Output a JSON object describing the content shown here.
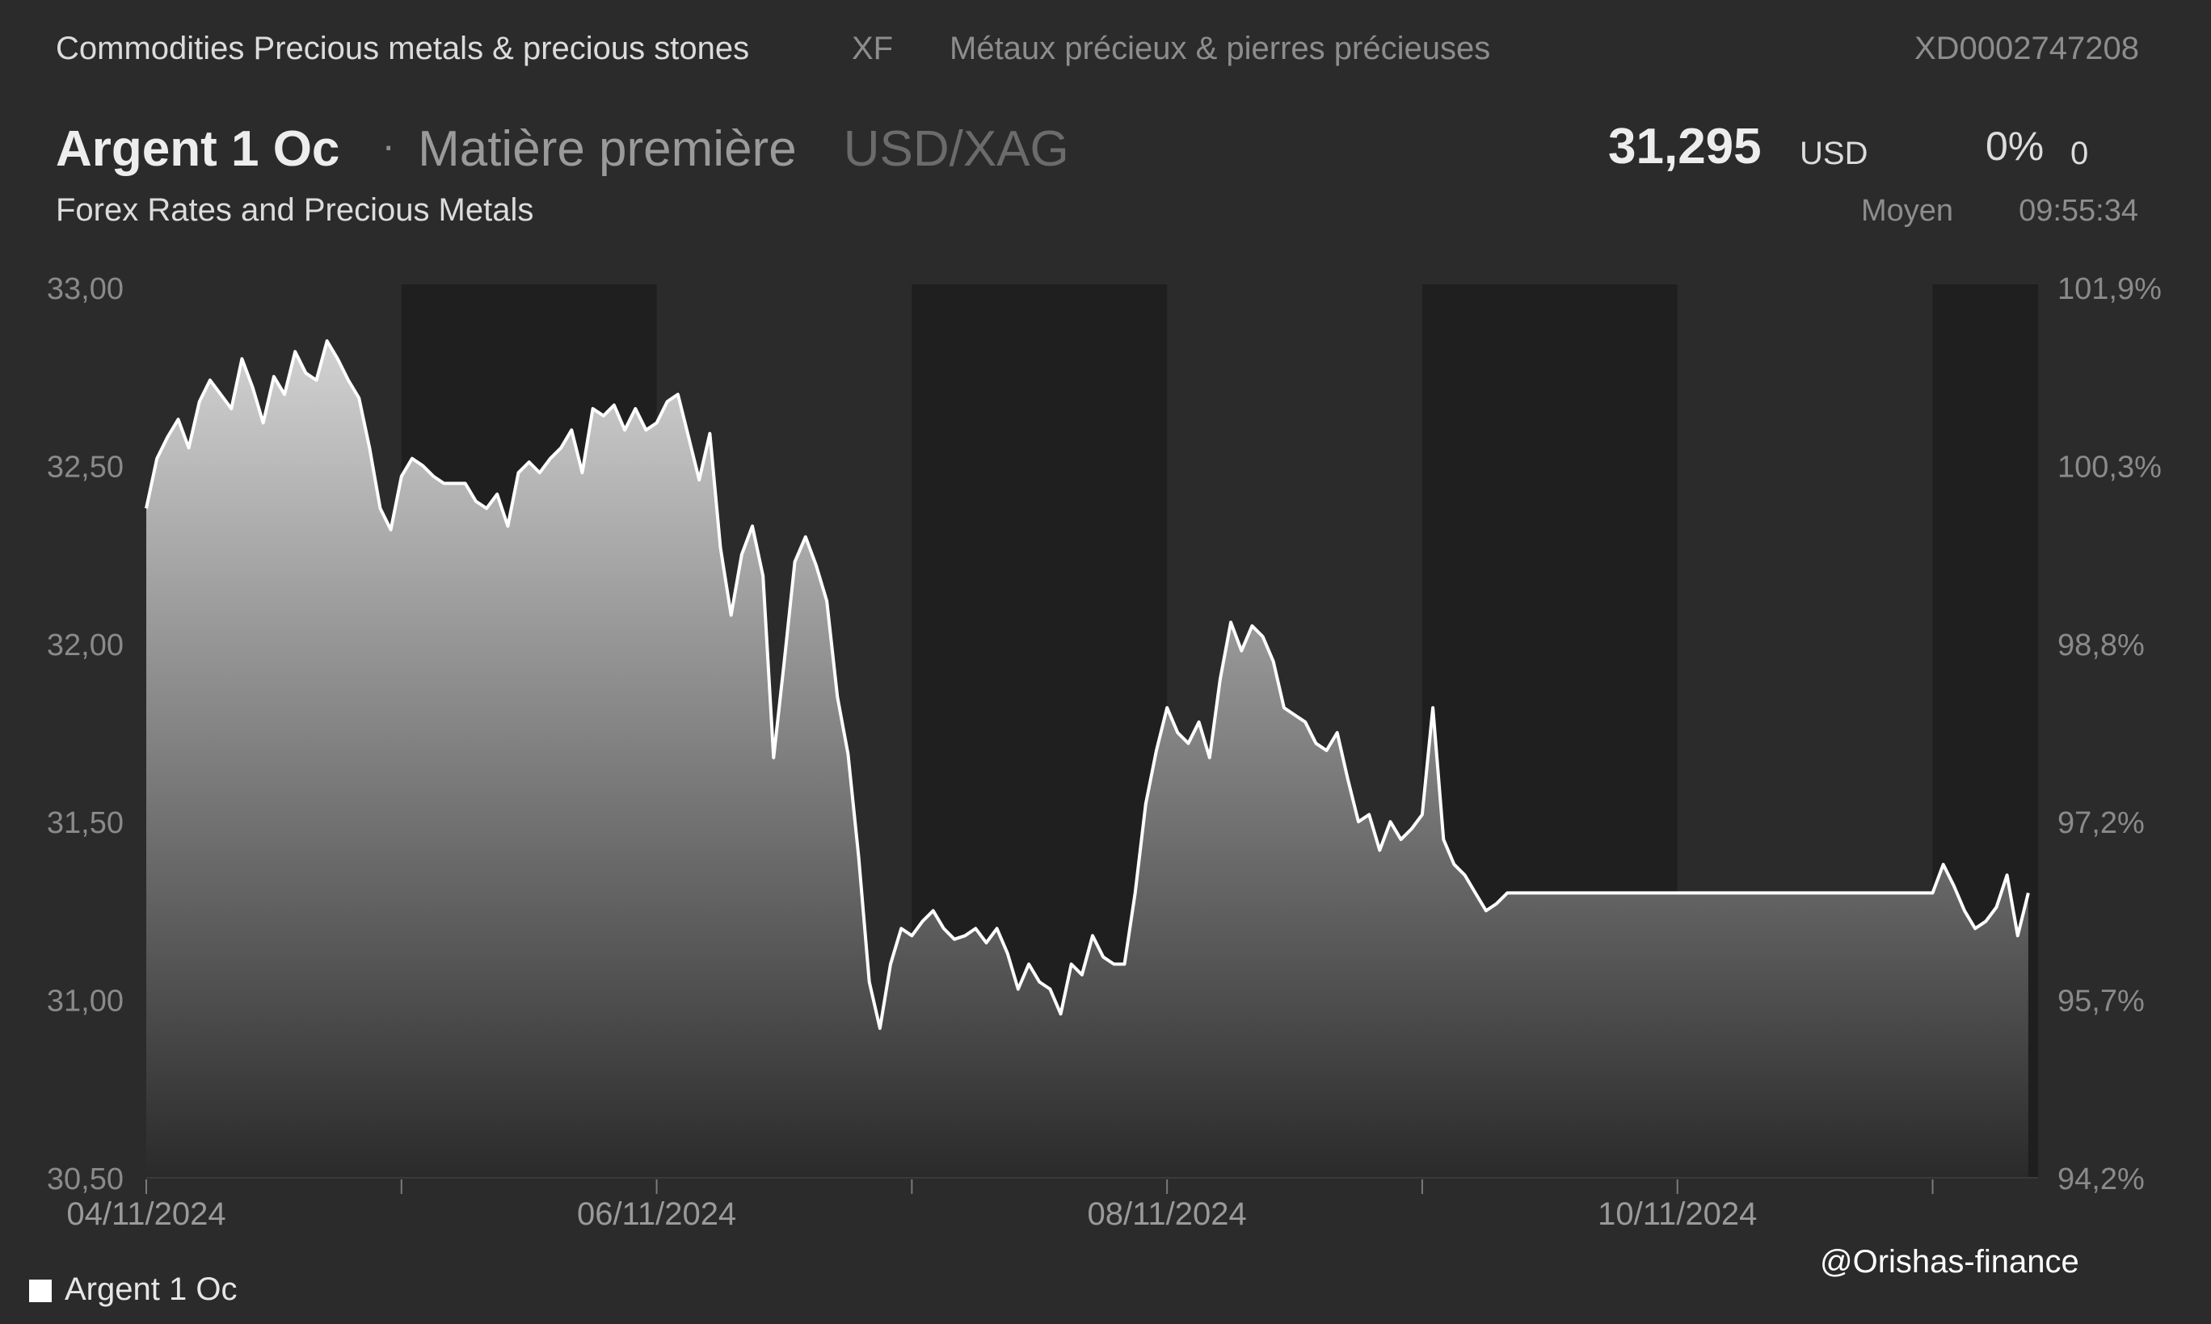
{
  "header": {
    "category": "Commodities Precious metals & precious stones",
    "code": "XF",
    "category_fr": "Métaux précieux & pierres précieuses",
    "isin": "XD0002747208"
  },
  "instrument": {
    "name": "Argent 1 Oc",
    "separator": "·",
    "type": "Matière première",
    "pair": "USD/XAG",
    "source": "Forex Rates and Precious Metals"
  },
  "quote": {
    "price": "31,295",
    "currency": "USD",
    "change_pct": "0%",
    "change_abs": "0",
    "price_type": "Moyen",
    "time": "09:55:34"
  },
  "watermark": "@Orishas-finance",
  "colors": {
    "background": "#2b2b2b",
    "line": "#ffffff",
    "shade": "#1f1f1f",
    "text": "#e6e6e6",
    "muted": "#8d8d8d"
  },
  "chart_data": {
    "type": "area",
    "series": [
      {
        "name": "Argent 1 Oc",
        "points": [
          [
            "2024-11-04 00:00",
            32.38
          ],
          [
            "2024-11-04 01:00",
            32.52
          ],
          [
            "2024-11-04 02:00",
            32.58
          ],
          [
            "2024-11-04 03:00",
            32.63
          ],
          [
            "2024-11-04 04:00",
            32.55
          ],
          [
            "2024-11-04 05:00",
            32.68
          ],
          [
            "2024-11-04 06:00",
            32.74
          ],
          [
            "2024-11-04 07:00",
            32.7
          ],
          [
            "2024-11-04 08:00",
            32.66
          ],
          [
            "2024-11-04 09:00",
            32.8
          ],
          [
            "2024-11-04 10:00",
            32.72
          ],
          [
            "2024-11-04 11:00",
            32.62
          ],
          [
            "2024-11-04 12:00",
            32.75
          ],
          [
            "2024-11-04 13:00",
            32.7
          ],
          [
            "2024-11-04 14:00",
            32.82
          ],
          [
            "2024-11-04 15:00",
            32.76
          ],
          [
            "2024-11-04 16:00",
            32.74
          ],
          [
            "2024-11-04 17:00",
            32.85
          ],
          [
            "2024-11-04 18:00",
            32.8
          ],
          [
            "2024-11-04 19:00",
            32.74
          ],
          [
            "2024-11-04 20:00",
            32.69
          ],
          [
            "2024-11-04 21:00",
            32.55
          ],
          [
            "2024-11-04 22:00",
            32.38
          ],
          [
            "2024-11-04 23:00",
            32.32
          ],
          [
            "2024-11-05 00:00",
            32.47
          ],
          [
            "2024-11-05 01:00",
            32.52
          ],
          [
            "2024-11-05 02:00",
            32.5
          ],
          [
            "2024-11-05 03:00",
            32.47
          ],
          [
            "2024-11-05 04:00",
            32.45
          ],
          [
            "2024-11-05 05:00",
            32.45
          ],
          [
            "2024-11-05 06:00",
            32.45
          ],
          [
            "2024-11-05 07:00",
            32.4
          ],
          [
            "2024-11-05 08:00",
            32.38
          ],
          [
            "2024-11-05 09:00",
            32.42
          ],
          [
            "2024-11-05 10:00",
            32.33
          ],
          [
            "2024-11-05 11:00",
            32.48
          ],
          [
            "2024-11-05 12:00",
            32.51
          ],
          [
            "2024-11-05 13:00",
            32.48
          ],
          [
            "2024-11-05 14:00",
            32.52
          ],
          [
            "2024-11-05 15:00",
            32.55
          ],
          [
            "2024-11-05 16:00",
            32.6
          ],
          [
            "2024-11-05 17:00",
            32.48
          ],
          [
            "2024-11-05 18:00",
            32.66
          ],
          [
            "2024-11-05 19:00",
            32.64
          ],
          [
            "2024-11-05 20:00",
            32.67
          ],
          [
            "2024-11-05 21:00",
            32.6
          ],
          [
            "2024-11-05 22:00",
            32.66
          ],
          [
            "2024-11-05 23:00",
            32.6
          ],
          [
            "2024-11-06 00:00",
            32.62
          ],
          [
            "2024-11-06 01:00",
            32.68
          ],
          [
            "2024-11-06 02:00",
            32.7
          ],
          [
            "2024-11-06 03:00",
            32.58
          ],
          [
            "2024-11-06 04:00",
            32.46
          ],
          [
            "2024-11-06 05:00",
            32.59
          ],
          [
            "2024-11-06 06:00",
            32.27
          ],
          [
            "2024-11-06 07:00",
            32.08
          ],
          [
            "2024-11-06 08:00",
            32.25
          ],
          [
            "2024-11-06 09:00",
            32.33
          ],
          [
            "2024-11-06 10:00",
            32.19
          ],
          [
            "2024-11-06 11:00",
            31.68
          ],
          [
            "2024-11-06 12:00",
            31.95
          ],
          [
            "2024-11-06 13:00",
            32.23
          ],
          [
            "2024-11-06 14:00",
            32.3
          ],
          [
            "2024-11-06 15:00",
            32.22
          ],
          [
            "2024-11-06 16:00",
            32.12
          ],
          [
            "2024-11-06 17:00",
            31.85
          ],
          [
            "2024-11-06 18:00",
            31.69
          ],
          [
            "2024-11-06 19:00",
            31.4
          ],
          [
            "2024-11-06 20:00",
            31.05
          ],
          [
            "2024-11-06 21:00",
            30.92
          ],
          [
            "2024-11-06 22:00",
            31.1
          ],
          [
            "2024-11-06 23:00",
            31.2
          ],
          [
            "2024-11-07 00:00",
            31.18
          ],
          [
            "2024-11-07 01:00",
            31.22
          ],
          [
            "2024-11-07 02:00",
            31.25
          ],
          [
            "2024-11-07 03:00",
            31.2
          ],
          [
            "2024-11-07 04:00",
            31.17
          ],
          [
            "2024-11-07 05:00",
            31.18
          ],
          [
            "2024-11-07 06:00",
            31.2
          ],
          [
            "2024-11-07 07:00",
            31.16
          ],
          [
            "2024-11-07 08:00",
            31.2
          ],
          [
            "2024-11-07 09:00",
            31.13
          ],
          [
            "2024-11-07 10:00",
            31.03
          ],
          [
            "2024-11-07 11:00",
            31.1
          ],
          [
            "2024-11-07 12:00",
            31.05
          ],
          [
            "2024-11-07 13:00",
            31.03
          ],
          [
            "2024-11-07 14:00",
            30.96
          ],
          [
            "2024-11-07 15:00",
            31.1
          ],
          [
            "2024-11-07 16:00",
            31.07
          ],
          [
            "2024-11-07 17:00",
            31.18
          ],
          [
            "2024-11-07 18:00",
            31.12
          ],
          [
            "2024-11-07 19:00",
            31.1
          ],
          [
            "2024-11-07 20:00",
            31.1
          ],
          [
            "2024-11-07 21:00",
            31.3
          ],
          [
            "2024-11-07 22:00",
            31.55
          ],
          [
            "2024-11-07 23:00",
            31.7
          ],
          [
            "2024-11-08 00:00",
            31.82
          ],
          [
            "2024-11-08 01:00",
            31.75
          ],
          [
            "2024-11-08 02:00",
            31.72
          ],
          [
            "2024-11-08 03:00",
            31.78
          ],
          [
            "2024-11-08 04:00",
            31.68
          ],
          [
            "2024-11-08 05:00",
            31.9
          ],
          [
            "2024-11-08 06:00",
            32.06
          ],
          [
            "2024-11-08 07:00",
            31.98
          ],
          [
            "2024-11-08 08:00",
            32.05
          ],
          [
            "2024-11-08 09:00",
            32.02
          ],
          [
            "2024-11-08 10:00",
            31.95
          ],
          [
            "2024-11-08 11:00",
            31.82
          ],
          [
            "2024-11-08 12:00",
            31.8
          ],
          [
            "2024-11-08 13:00",
            31.78
          ],
          [
            "2024-11-08 14:00",
            31.72
          ],
          [
            "2024-11-08 15:00",
            31.7
          ],
          [
            "2024-11-08 16:00",
            31.75
          ],
          [
            "2024-11-08 17:00",
            31.62
          ],
          [
            "2024-11-08 18:00",
            31.5
          ],
          [
            "2024-11-08 19:00",
            31.52
          ],
          [
            "2024-11-08 20:00",
            31.42
          ],
          [
            "2024-11-08 21:00",
            31.5
          ],
          [
            "2024-11-08 22:00",
            31.45
          ],
          [
            "2024-11-08 23:00",
            31.48
          ],
          [
            "2024-11-09 00:00",
            31.52
          ],
          [
            "2024-11-09 01:00",
            31.82
          ],
          [
            "2024-11-09 02:00",
            31.45
          ],
          [
            "2024-11-09 03:00",
            31.38
          ],
          [
            "2024-11-09 04:00",
            31.35
          ],
          [
            "2024-11-09 05:00",
            31.3
          ],
          [
            "2024-11-09 06:00",
            31.25
          ],
          [
            "2024-11-09 07:00",
            31.27
          ],
          [
            "2024-11-09 08:00",
            31.3
          ],
          [
            "2024-11-11 00:00",
            31.3
          ],
          [
            "2024-11-11 01:00",
            31.38
          ],
          [
            "2024-11-11 02:00",
            31.32
          ],
          [
            "2024-11-11 03:00",
            31.25
          ],
          [
            "2024-11-11 04:00",
            31.2
          ],
          [
            "2024-11-11 05:00",
            31.22
          ],
          [
            "2024-11-11 06:00",
            31.26
          ],
          [
            "2024-11-11 07:00",
            31.35
          ],
          [
            "2024-11-11 08:00",
            31.18
          ],
          [
            "2024-11-11 09:00",
            31.3
          ]
        ]
      }
    ],
    "closed_periods": [
      [
        "2024-11-05 00:00",
        "2024-11-06 00:00"
      ],
      [
        "2024-11-07 00:00",
        "2024-11-08 00:00"
      ],
      [
        "2024-11-09 00:00",
        "2024-11-10 00:00"
      ],
      [
        "2024-11-11 00:00",
        "2024-11-11 09:55"
      ]
    ],
    "x_ticks": [
      "2024-11-04",
      "2024-11-05",
      "2024-11-06",
      "2024-11-07",
      "2024-11-08",
      "2024-11-09",
      "2024-11-10",
      "2024-11-11"
    ],
    "x_tick_labels": [
      {
        "at": "2024-11-04",
        "text": "04/11/2024"
      },
      {
        "at": "2024-11-06",
        "text": "06/11/2024"
      },
      {
        "at": "2024-11-08",
        "text": "08/11/2024"
      },
      {
        "at": "2024-11-10",
        "text": "10/11/2024"
      }
    ],
    "y_left_ticks": [
      {
        "value": 33.0,
        "text": "33,00"
      },
      {
        "value": 32.5,
        "text": "32,50"
      },
      {
        "value": 32.0,
        "text": "32,00"
      },
      {
        "value": 31.5,
        "text": "31,50"
      },
      {
        "value": 31.0,
        "text": "31,00"
      },
      {
        "value": 30.5,
        "text": "30,50"
      }
    ],
    "y_right_ticks": [
      "101,9%",
      "100,3%",
      "98,8%",
      "97,2%",
      "95,7%",
      "94,2%"
    ],
    "ylim": [
      30.5,
      33.0
    ],
    "xlim": [
      "2024-11-04 00:00",
      "2024-11-11 09:55"
    ],
    "legend": "bottom-left",
    "grid": false
  }
}
